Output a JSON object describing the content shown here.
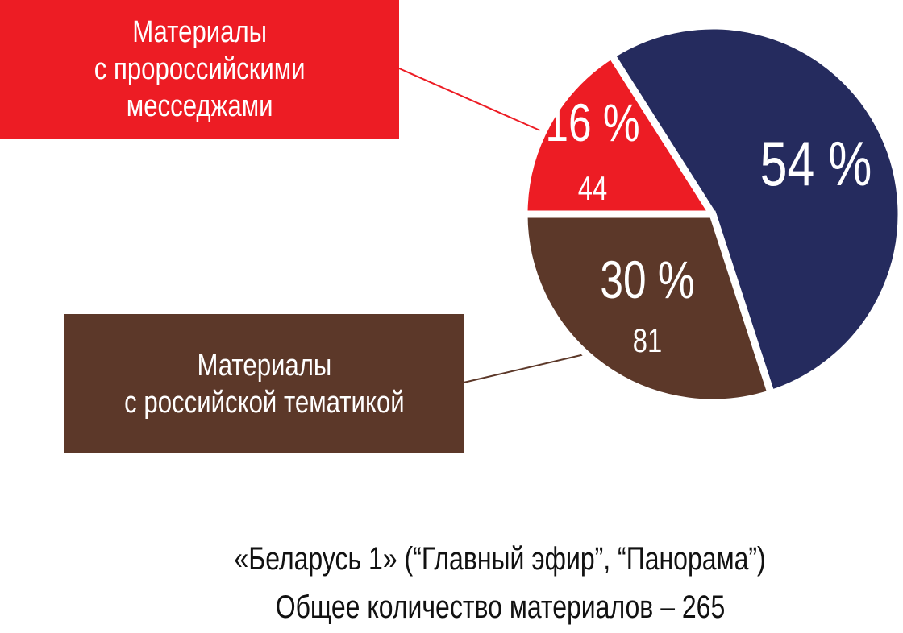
{
  "chart_data": {
    "type": "pie",
    "start_angle_deg": 270,
    "direction": "clockwise",
    "slices": [
      {
        "label": "Материалы с пророссийскими месседжами",
        "percent_label": "16 %",
        "count_label": "44",
        "value": 44,
        "percent": 16,
        "color": "#ED1C24"
      },
      {
        "label": "",
        "percent_label": "54 %",
        "count_label": "",
        "value": 140,
        "percent": 54,
        "color": "#252B5E"
      },
      {
        "label": "Материалы с российской тематикой",
        "percent_label": "30 %",
        "count_label": "81",
        "value": 81,
        "percent": 30,
        "color": "#5C3829"
      }
    ],
    "caption_line1": "«Беларусь 1» (“Главный эфир”, “Панорама”)",
    "caption_line2": "Общее количество материалов – 265"
  },
  "labels": {
    "red_box": "Материалы\nс пророссийскими\nмесседжами",
    "brown_box": "Материалы\nс российской тематикой"
  }
}
